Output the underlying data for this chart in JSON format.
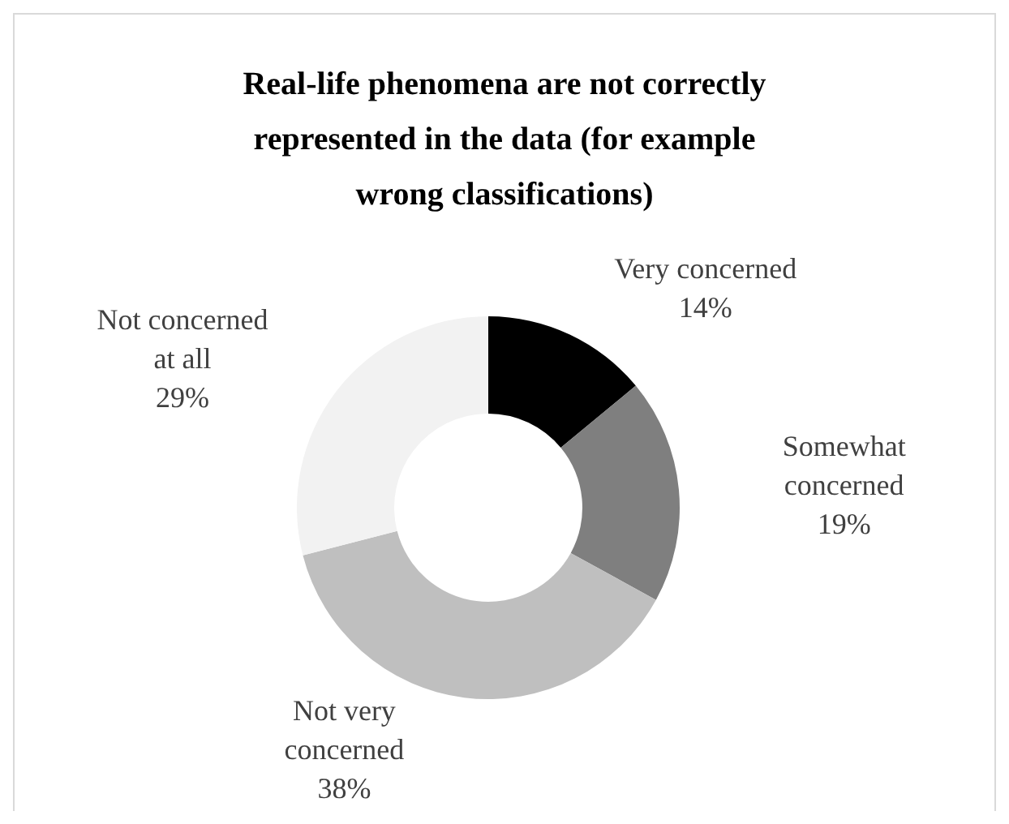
{
  "chart_data": {
    "type": "donut",
    "title": "Real-life phenomena are not correctly represented in the data (for example wrong classifications)",
    "categories": [
      "Very concerned",
      "Somewhat concerned",
      "Not very concerned",
      "Not concerned at all"
    ],
    "values": [
      14,
      19,
      38,
      29
    ],
    "value_labels": [
      "14%",
      "19%",
      "38%",
      "29%"
    ],
    "colors": [
      "#000000",
      "#7f7f7f",
      "#bfbfbf",
      "#f2f2f2"
    ]
  }
}
